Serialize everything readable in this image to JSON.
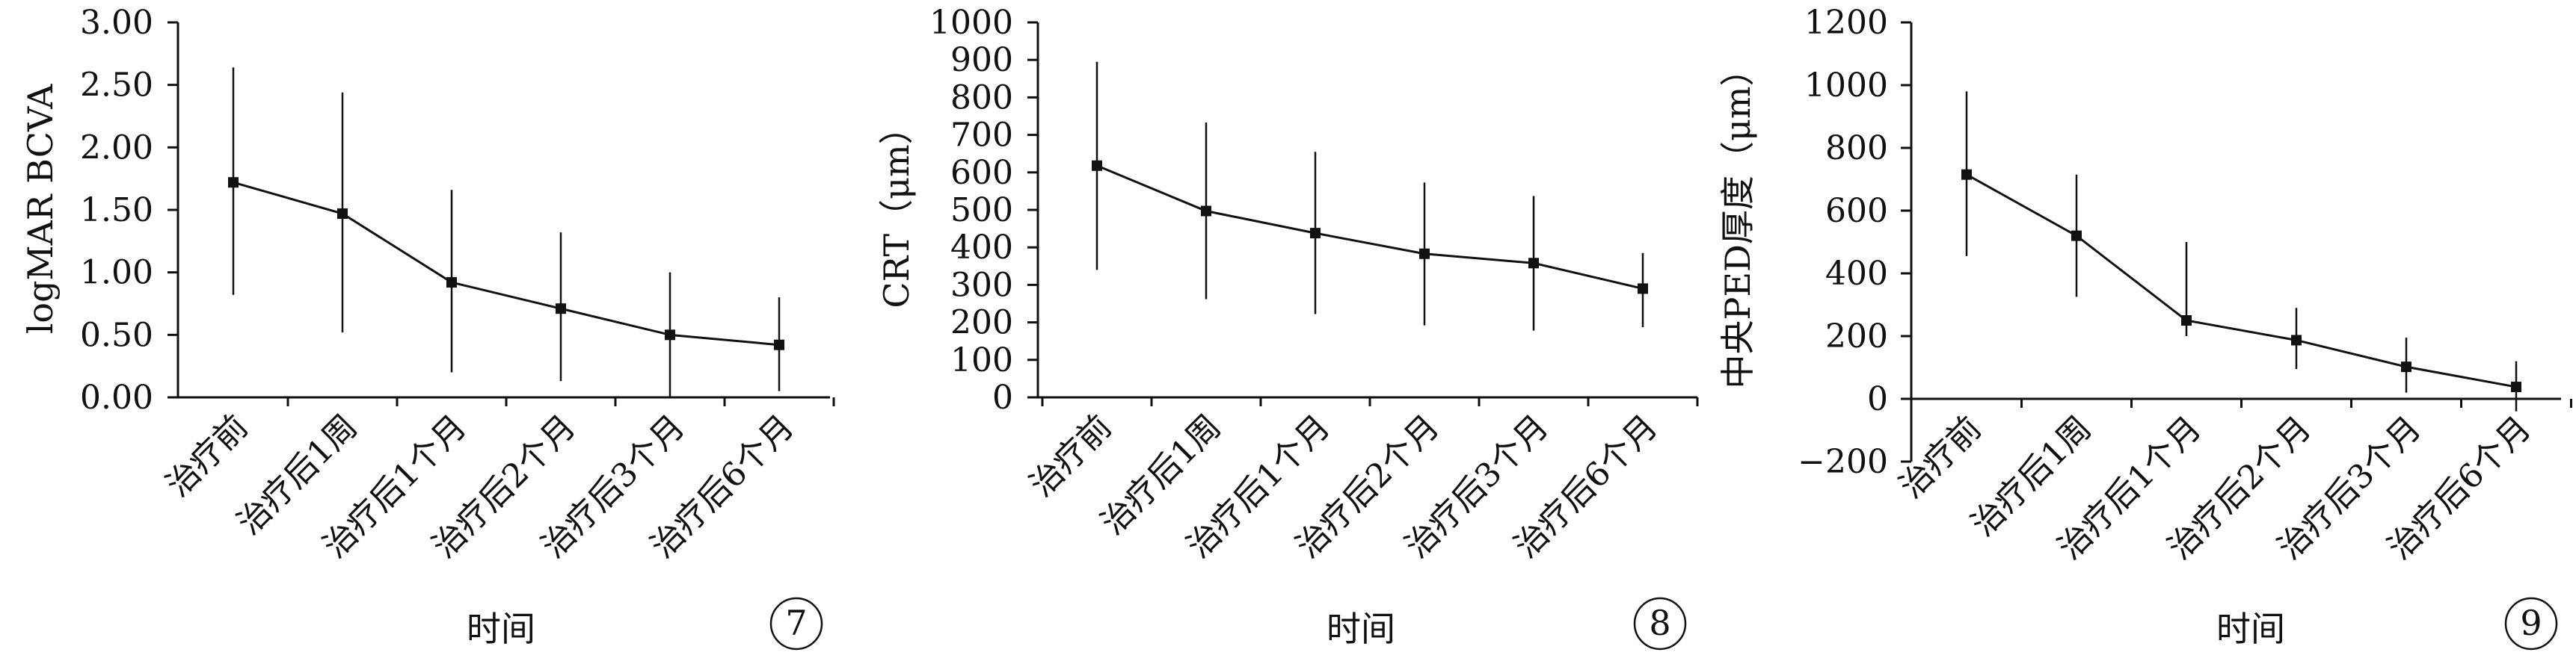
{
  "chart_data": [
    {
      "type": "line",
      "panel_number": "7",
      "xlabel": "时间",
      "ylabel": "logMAR BCVA",
      "categories": [
        "治疗前",
        "治疗后1周",
        "治疗后1个月",
        "治疗后2个月",
        "治疗后3个月",
        "治疗后6个月"
      ],
      "values": [
        1.72,
        1.47,
        0.92,
        0.71,
        0.5,
        0.42
      ],
      "error_low": [
        0.82,
        0.52,
        0.2,
        0.13,
        0.0,
        0.05
      ],
      "error_high": [
        2.64,
        2.44,
        1.66,
        1.32,
        1.0,
        0.8
      ],
      "ylim": [
        0,
        3
      ],
      "yticks": [
        "0.00",
        "0.50",
        "1.00",
        "1.50",
        "2.00",
        "2.50",
        "3.00"
      ],
      "ytick_values": [
        0,
        0.5,
        1,
        1.5,
        2,
        2.5,
        3
      ]
    },
    {
      "type": "line",
      "panel_number": "8",
      "xlabel": "时间",
      "ylabel": "CRT（μm）",
      "categories": [
        "治疗前",
        "治疗后1周",
        "治疗后1个月",
        "治疗后2个月",
        "治疗后3个月",
        "治疗后6个月"
      ],
      "values": [
        618,
        497,
        438,
        383,
        358,
        290
      ],
      "error_low": [
        340,
        262,
        222,
        192,
        178,
        187
      ],
      "error_high": [
        895,
        733,
        655,
        573,
        537,
        385
      ],
      "ylim": [
        0,
        1000
      ],
      "yticks": [
        "0",
        "100",
        "200",
        "300",
        "400",
        "500",
        "600",
        "700",
        "800",
        "900",
        "1000"
      ],
      "ytick_values": [
        0,
        100,
        200,
        300,
        400,
        500,
        600,
        700,
        800,
        900,
        1000
      ]
    },
    {
      "type": "line",
      "panel_number": "9",
      "xlabel": "时间",
      "ylabel": "中央PED厚度（μm）",
      "categories": [
        "治疗前",
        "治疗后1周",
        "治疗后1个月",
        "治疗后2个月",
        "治疗后3个月",
        "治疗后6个月"
      ],
      "values": [
        715,
        520,
        250,
        187,
        102,
        38
      ],
      "error_low": [
        455,
        325,
        200,
        95,
        20,
        -40
      ],
      "error_high": [
        980,
        715,
        500,
        290,
        195,
        120
      ],
      "ylim": [
        -200,
        1200
      ],
      "yticks": [
        "−200",
        "0",
        "200",
        "400",
        "600",
        "800",
        "1000",
        "1200"
      ],
      "ytick_values": [
        -200,
        0,
        200,
        400,
        600,
        800,
        1000,
        1200
      ]
    }
  ]
}
